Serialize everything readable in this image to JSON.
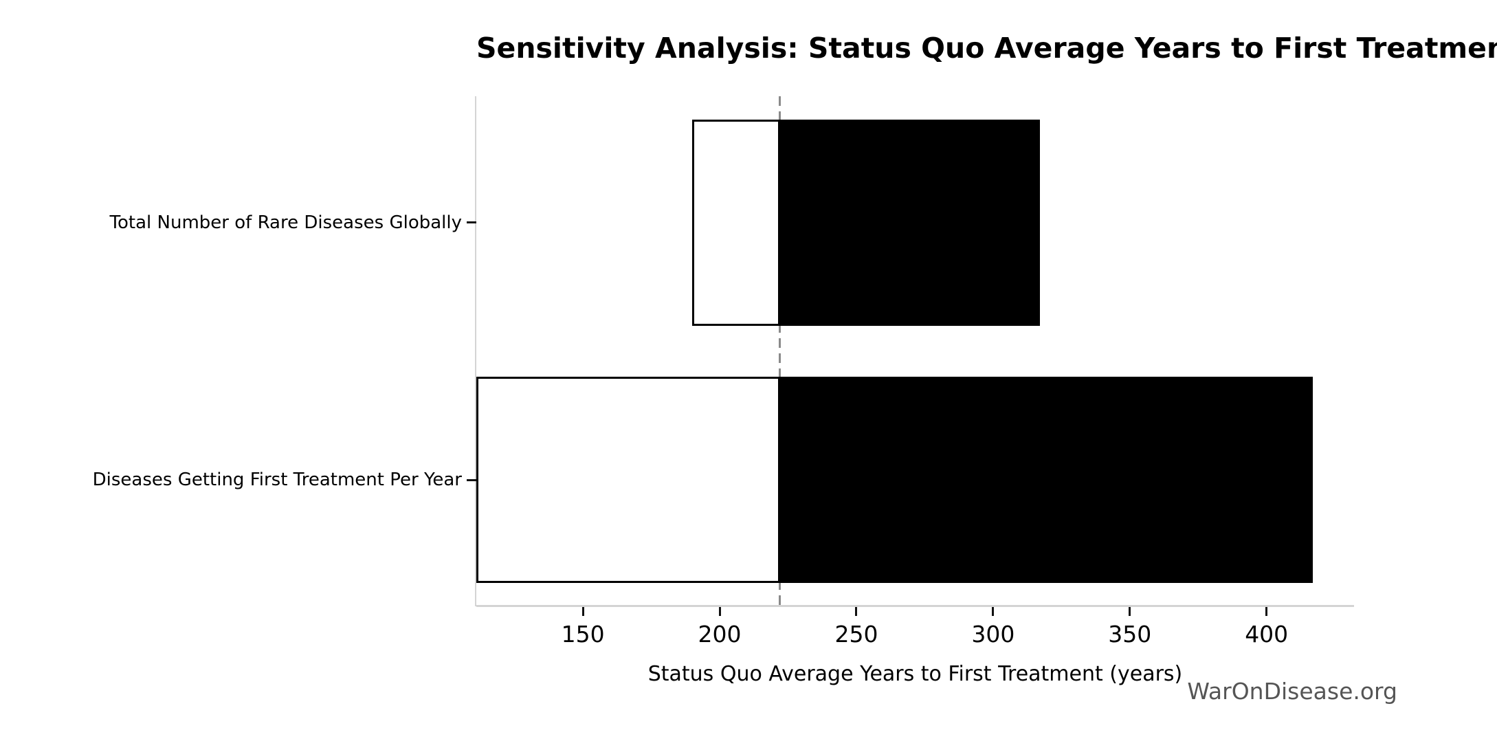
{
  "title": "Sensitivity Analysis: Status Quo Average Years to First Treatment",
  "watermark": "WarOnDisease.org",
  "chart_data": {
    "type": "bar",
    "orientation": "horizontal",
    "title": "Sensitivity Analysis: Status Quo Average Years to First Treatment",
    "xlabel": "Status Quo Average Years to First Treatment (years)",
    "ylabel": "",
    "categories": [
      "Total Number of Rare Diseases Globally",
      "Diseases Getting First Treatment Per Year"
    ],
    "baseline": 222,
    "bars": [
      {
        "label": "Total Number of Rare Diseases Globally",
        "low": 190,
        "high": 317
      },
      {
        "label": "Diseases Getting First Treatment Per Year",
        "low": 111,
        "high": 417
      }
    ],
    "xlim": [
      111,
      432
    ],
    "xticks": [
      150,
      200,
      250,
      300,
      350,
      400
    ],
    "grid": false,
    "legend": null,
    "colors": {
      "below_baseline_fill": "#ffffff",
      "above_baseline_fill": "#000000",
      "bar_edge": "#000000",
      "baseline_line": "#8a8a8a",
      "spine": "#d4d4d4",
      "tick_mark": "#111111",
      "text": "#000000",
      "watermark": "#555555"
    }
  }
}
